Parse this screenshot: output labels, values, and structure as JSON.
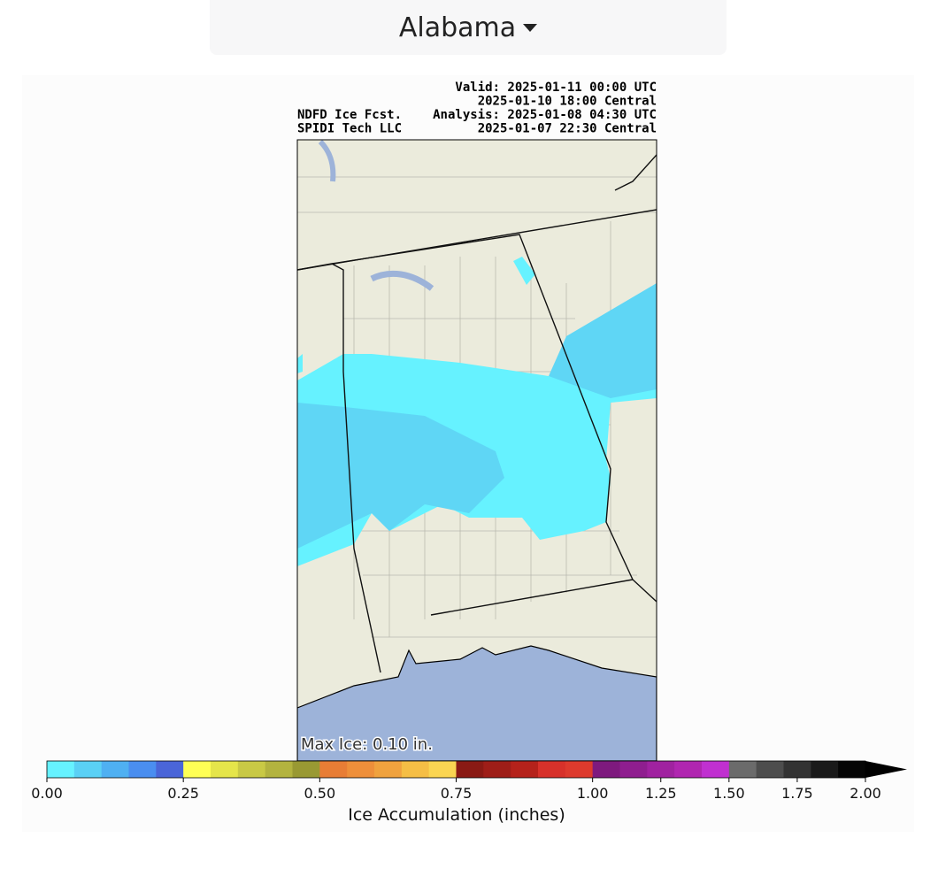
{
  "dropdown": {
    "label": "Alabama"
  },
  "map": {
    "header_left": [
      "NDFD Ice Fcst.",
      "SPIDI Tech LLC"
    ],
    "header_right": [
      "Valid: 2025-01-11 00:00 UTC",
      "2025-01-10 18:00 Central",
      "Analysis: 2025-01-08 04:30 UTC",
      "2025-01-07 22:30 Central"
    ],
    "annotation": "Max Ice: 0.10 in."
  },
  "colorbar": {
    "label": "Ice Accumulation (inches)",
    "bounds": [
      0,
      0.05,
      0.1,
      0.15,
      0.2,
      0.25,
      0.3,
      0.35,
      0.4,
      0.45,
      0.5,
      0.55,
      0.6,
      0.65,
      0.7,
      0.75,
      0.8,
      0.85,
      0.9,
      0.95,
      1.0,
      1.1,
      1.2,
      1.3,
      1.4,
      1.5,
      1.6,
      1.7,
      1.8,
      1.9,
      2.0
    ],
    "colors": [
      "#66f2ff",
      "#5ad0f5",
      "#4fb0f2",
      "#4a8ef0",
      "#4a65d8",
      "#ffff55",
      "#e5e54a",
      "#c9c945",
      "#b3b33f",
      "#999933",
      "#e87d35",
      "#ee8f3a",
      "#f0a23e",
      "#f5be45",
      "#fad552",
      "#8a1a14",
      "#9e1e18",
      "#b5221b",
      "#d7312a",
      "#dd3a2d",
      "#7e1a7e",
      "#8f1e8f",
      "#a022a0",
      "#b026b0",
      "#c030d0",
      "#6b6b6b",
      "#4d4d4d",
      "#333333",
      "#1a1a1a",
      "#050505"
    ],
    "ticks": [
      {
        "value": 0,
        "label": "0.00"
      },
      {
        "value": 0.25,
        "label": "0.25"
      },
      {
        "value": 0.5,
        "label": "0.50"
      },
      {
        "value": 0.75,
        "label": "0.75"
      },
      {
        "value": 1.0,
        "label": "1.00"
      },
      {
        "value": 1.25,
        "label": "1.25"
      },
      {
        "value": 1.5,
        "label": "1.50"
      },
      {
        "value": 1.75,
        "label": "1.75"
      },
      {
        "value": 2.0,
        "label": "2.00"
      }
    ]
  }
}
